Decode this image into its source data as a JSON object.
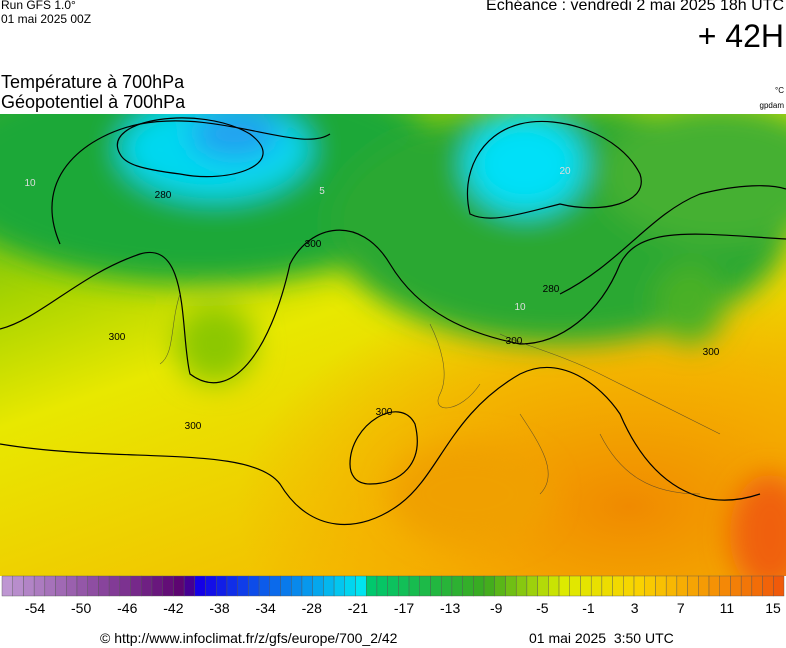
{
  "header": {
    "run": "Run GFS 1.0°",
    "run_date": "01 mai 2025 00Z",
    "valid": "Echéance : vendredi 2 mai 2025 18h UTC",
    "lead": "+ 42H"
  },
  "titles": {
    "line1": "Température à 700hPa",
    "line2": "Géopotentiel à 700hPa",
    "unit_temp": "°C",
    "unit_geo": "gpdam"
  },
  "map": {
    "contour_labels": [
      "280",
      "300",
      "300",
      "300",
      "300",
      "300",
      "280",
      "300",
      "10",
      "20",
      "10",
      "5"
    ]
  },
  "colorbar": {
    "labels": [
      "-54",
      "-50",
      "-46",
      "-42",
      "-38",
      "-34",
      "-28",
      "-21",
      "-17",
      "-13",
      "-9",
      "-5",
      "-1",
      "3",
      "7",
      "11",
      "15"
    ]
  },
  "footer": {
    "source": "© http://www.infoclimat.fr/z/gfs/europe/700_2/42",
    "generated": "01 mai 2025  3:50 UTC"
  }
}
